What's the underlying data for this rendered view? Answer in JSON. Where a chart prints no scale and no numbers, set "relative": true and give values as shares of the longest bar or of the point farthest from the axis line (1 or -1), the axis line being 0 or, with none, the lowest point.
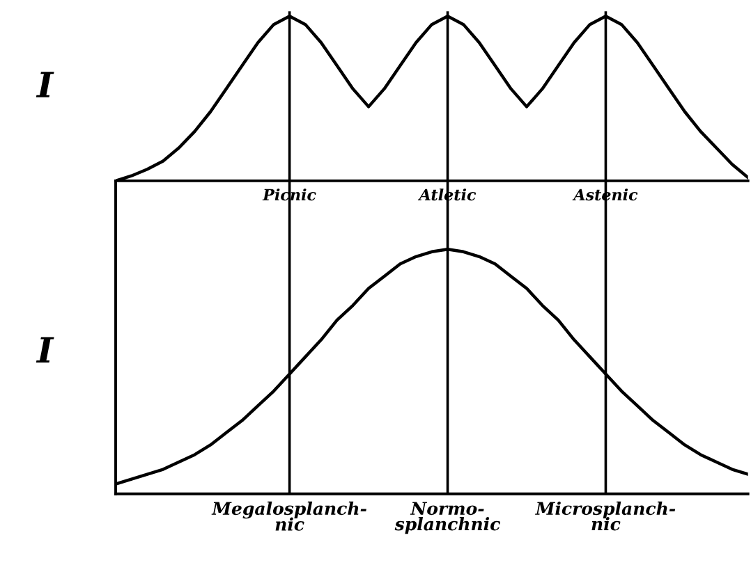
{
  "chart_data": [
    {
      "type": "line",
      "relative": true,
      "ylabel": "I",
      "grid": "x",
      "marker": "none",
      "line_style": "solid",
      "categories": [
        null,
        null,
        null,
        null,
        null,
        null,
        null,
        null,
        null,
        null,
        null,
        "Picnic",
        null,
        null,
        null,
        null,
        null,
        null,
        null,
        null,
        null,
        "Atletic",
        null,
        null,
        null,
        null,
        null,
        null,
        null,
        null,
        null,
        "Astenic",
        null,
        null,
        null,
        null,
        null,
        null,
        null,
        null,
        null
      ],
      "series": [
        {
          "color": "#000000",
          "values": [
            0,
            0.03,
            0.07,
            0.12,
            0.2,
            0.3,
            0.42,
            0.56,
            0.7,
            0.84,
            0.95,
            1,
            0.95,
            0.84,
            0.7,
            0.56,
            0.45,
            0.56,
            0.7,
            0.84,
            0.95,
            1,
            0.95,
            0.84,
            0.7,
            0.56,
            0.45,
            0.56,
            0.7,
            0.84,
            0.95,
            1,
            0.95,
            0.84,
            0.7,
            0.56,
            0.42,
            0.3,
            0.2,
            0.1,
            0.02
          ]
        }
      ]
    },
    {
      "type": "line",
      "relative": true,
      "ylabel": "I",
      "grid": "x",
      "marker": "none",
      "line_style": "solid",
      "categories": [
        null,
        null,
        null,
        null,
        null,
        null,
        null,
        null,
        null,
        null,
        null,
        "Megalosplanch-\nnic",
        null,
        null,
        null,
        null,
        null,
        null,
        null,
        null,
        null,
        "Normo-\nsplanchnic",
        null,
        null,
        null,
        null,
        null,
        null,
        null,
        null,
        null,
        "Microsplanch-\nnic",
        null,
        null,
        null,
        null,
        null,
        null,
        null,
        null,
        null
      ],
      "series": [
        {
          "color": "#000000",
          "values": [
            0.04,
            0.06,
            0.08,
            0.1,
            0.13,
            0.16,
            0.2,
            0.25,
            0.3,
            0.36,
            0.42,
            0.49,
            0.56,
            0.63,
            0.71,
            0.77,
            0.84,
            0.89,
            0.94,
            0.97,
            0.99,
            1,
            0.99,
            0.97,
            0.94,
            0.89,
            0.84,
            0.77,
            0.71,
            0.63,
            0.56,
            0.49,
            0.42,
            0.36,
            0.3,
            0.25,
            0.2,
            0.16,
            0.13,
            0.1,
            0.08
          ]
        }
      ]
    }
  ]
}
